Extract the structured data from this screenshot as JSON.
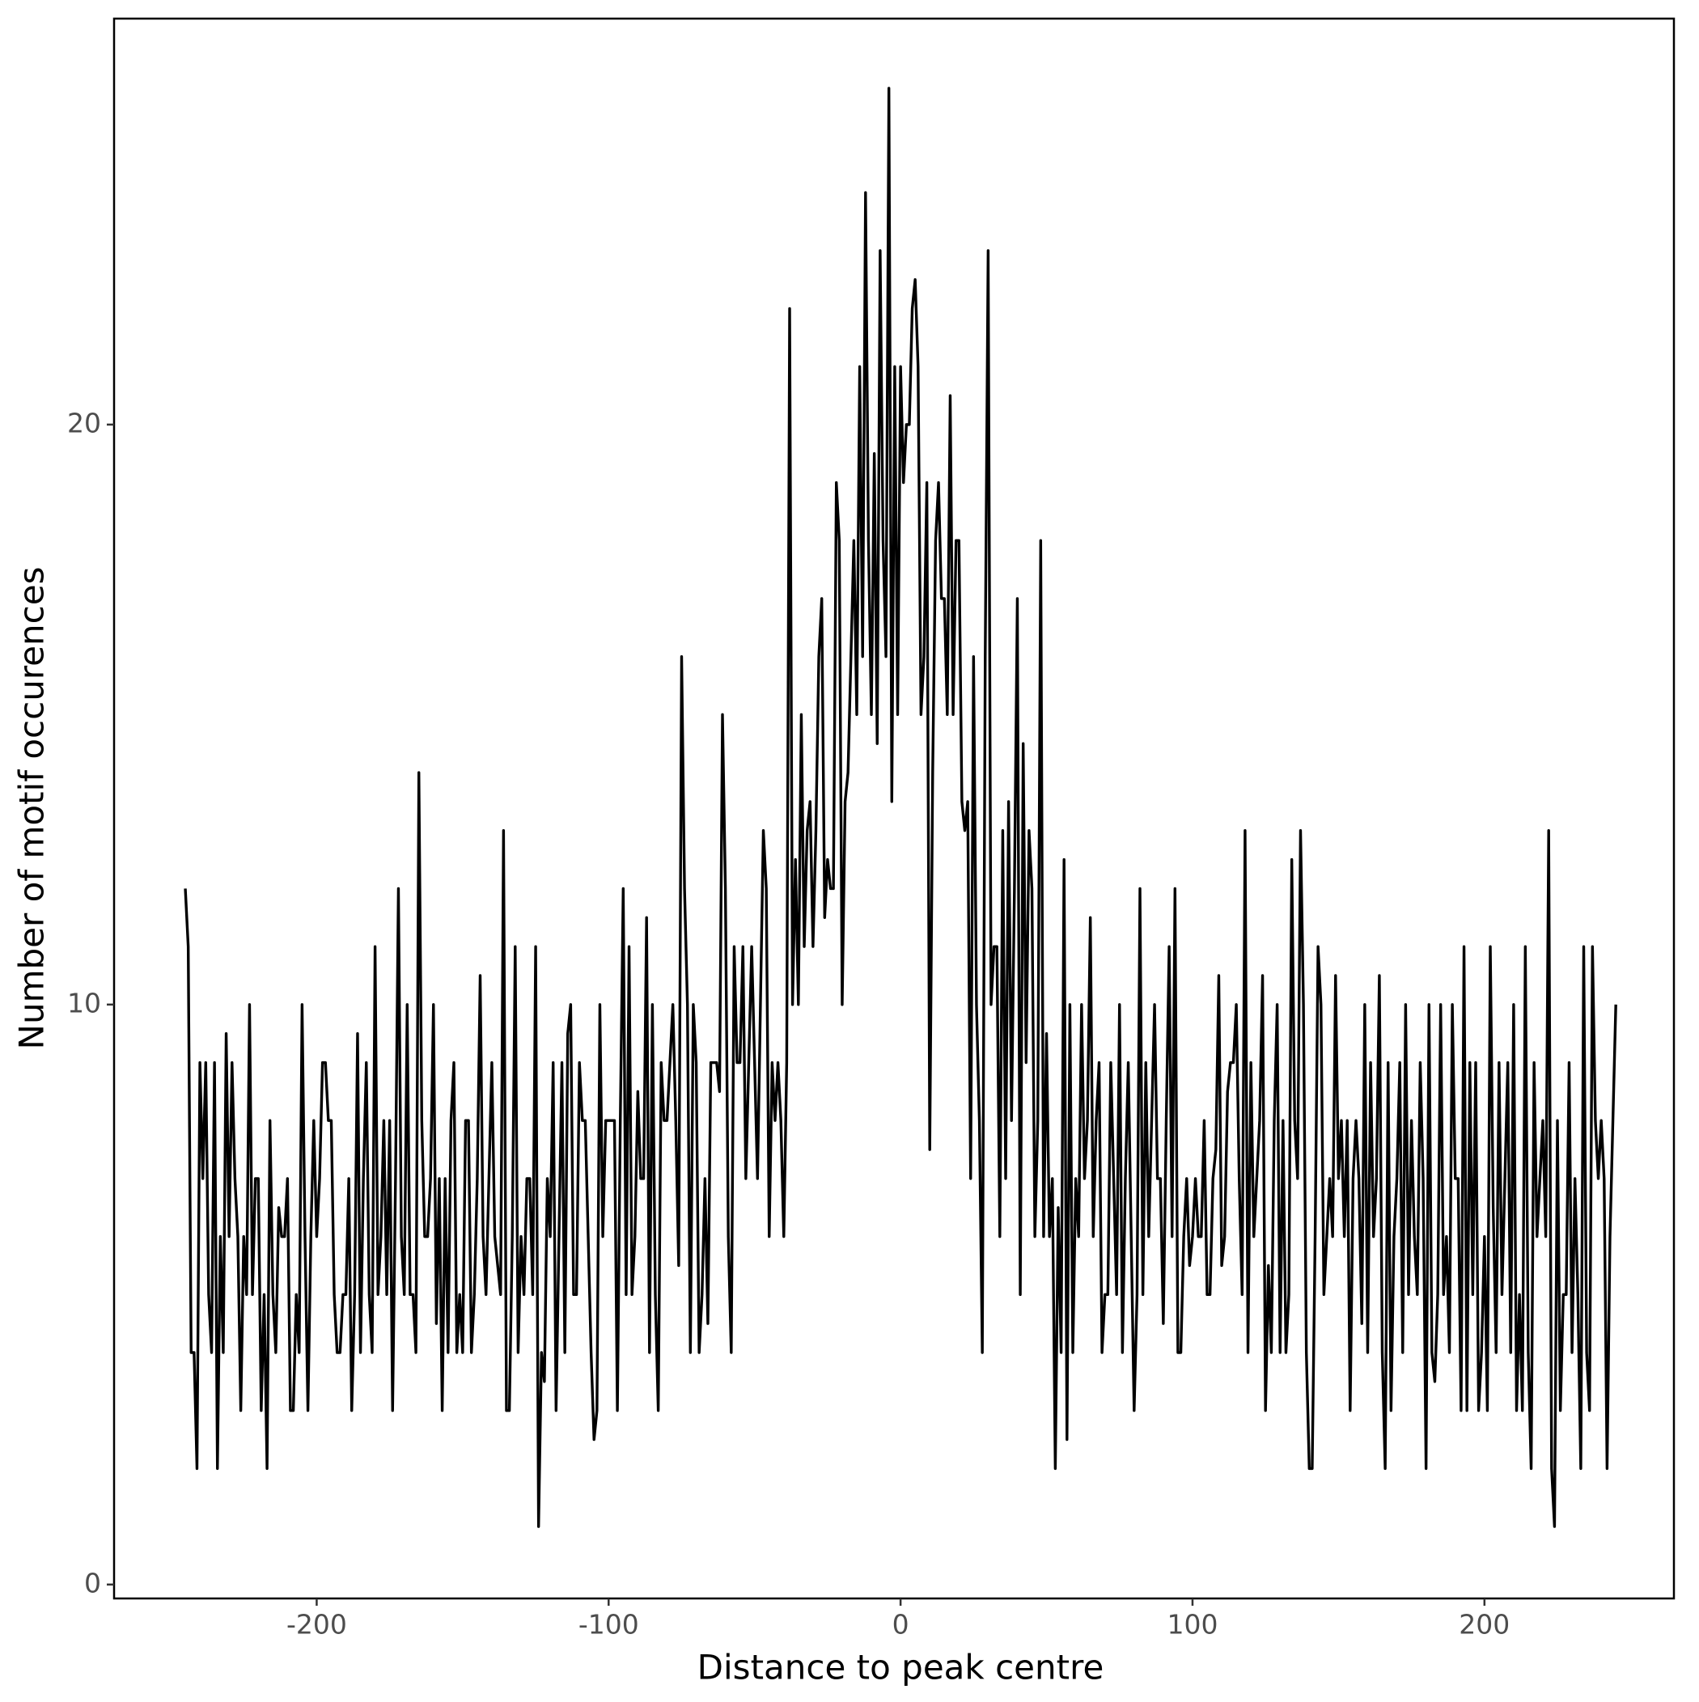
{
  "chart_data": {
    "type": "line",
    "x_label": "Distance to peak centre",
    "y_label": "Number of motif occurences",
    "color": "#000000",
    "xlim": [
      -269.4,
      264.9
    ],
    "ylim": [
      -0.24,
      27.0
    ],
    "xticks": [
      -200,
      -100,
      0,
      100,
      200
    ],
    "yticks": [
      0,
      10,
      20
    ],
    "grid": false,
    "x": [
      -245,
      -244,
      -243,
      -242,
      -241,
      -240,
      -239,
      -238,
      -237,
      -236,
      -235,
      -234,
      -233,
      -232,
      -231,
      -230,
      -229,
      -228,
      -227,
      -226,
      -225,
      -224,
      -223,
      -222,
      -221,
      -220,
      -219,
      -218,
      -217,
      -216,
      -215,
      -214,
      -213,
      -212,
      -211,
      -210,
      -209,
      -208,
      -207,
      -206,
      -205,
      -204,
      -203,
      -202,
      -201,
      -200,
      -199,
      -198,
      -197,
      -196,
      -195,
      -194,
      -193,
      -192,
      -191,
      -190,
      -189,
      -188,
      -187,
      -186,
      -185,
      -184,
      -183,
      -182,
      -181,
      -180,
      -179,
      -178,
      -177,
      -176,
      -175,
      -174,
      -173,
      -172,
      -171,
      -170,
      -169,
      -168,
      -167,
      -166,
      -165,
      -164,
      -163,
      -162,
      -161,
      -160,
      -159,
      -158,
      -157,
      -156,
      -155,
      -154,
      -153,
      -152,
      -151,
      -150,
      -149,
      -148,
      -147,
      -146,
      -145,
      -144,
      -143,
      -142,
      -141,
      -140,
      -139,
      -138,
      -137,
      -136,
      -135,
      -134,
      -133,
      -132,
      -131,
      -130,
      -129,
      -128,
      -127,
      -126,
      -125,
      -124,
      -123,
      -122,
      -121,
      -120,
      -119,
      -118,
      -117,
      -116,
      -115,
      -114,
      -113,
      -112,
      -111,
      -110,
      -109,
      -108,
      -107,
      -106,
      -105,
      -104,
      -103,
      -102,
      -101,
      -100,
      -99,
      -98,
      -97,
      -96,
      -95,
      -94,
      -93,
      -92,
      -91,
      -90,
      -89,
      -88,
      -87,
      -86,
      -85,
      -84,
      -83,
      -82,
      -81,
      -80,
      -79,
      -78,
      -77,
      -76,
      -75,
      -74,
      -73,
      -72,
      -71,
      -70,
      -69,
      -68,
      -67,
      -66,
      -65,
      -64,
      -63,
      -62,
      -61,
      -60,
      -59,
      -58,
      -57,
      -56,
      -55,
      -54,
      -53,
      -52,
      -51,
      -50,
      -49,
      -48,
      -47,
      -46,
      -45,
      -44,
      -43,
      -42,
      -41,
      -40,
      -39,
      -38,
      -37,
      -36,
      -35,
      -34,
      -33,
      -32,
      -31,
      -30,
      -29,
      -28,
      -27,
      -26,
      -25,
      -24,
      -23,
      -22,
      -21,
      -20,
      -19,
      -18,
      -17,
      -16,
      -15,
      -14,
      -13,
      -12,
      -11,
      -10,
      -9,
      -8,
      -7,
      -6,
      -5,
      -4,
      -3,
      -2,
      -1,
      0,
      1,
      2,
      3,
      4,
      5,
      6,
      7,
      8,
      9,
      10,
      11,
      12,
      13,
      14,
      15,
      16,
      17,
      18,
      19,
      20,
      21,
      22,
      23,
      24,
      25,
      26,
      27,
      28,
      29,
      30,
      31,
      32,
      33,
      34,
      35,
      36,
      37,
      38,
      39,
      40,
      41,
      42,
      43,
      44,
      45,
      46,
      47,
      48,
      49,
      50,
      51,
      52,
      53,
      54,
      55,
      56,
      57,
      58,
      59,
      60,
      61,
      62,
      63,
      64,
      65,
      66,
      67,
      68,
      69,
      70,
      71,
      72,
      73,
      74,
      75,
      76,
      77,
      78,
      79,
      80,
      81,
      82,
      83,
      84,
      85,
      86,
      87,
      88,
      89,
      90,
      91,
      92,
      93,
      94,
      95,
      96,
      97,
      98,
      99,
      100,
      101,
      102,
      103,
      104,
      105,
      106,
      107,
      108,
      109,
      110,
      111,
      112,
      113,
      114,
      115,
      116,
      117,
      118,
      119,
      120,
      121,
      122,
      123,
      124,
      125,
      126,
      127,
      128,
      129,
      130,
      131,
      132,
      133,
      134,
      135,
      136,
      137,
      138,
      139,
      140,
      141,
      142,
      143,
      144,
      145,
      146,
      147,
      148,
      149,
      150,
      151,
      152,
      153,
      154,
      155,
      156,
      157,
      158,
      159,
      160,
      161,
      162,
      163,
      164,
      165,
      166,
      167,
      168,
      169,
      170,
      171,
      172,
      173,
      174,
      175,
      176,
      177,
      178,
      179,
      180,
      181,
      182,
      183,
      184,
      185,
      186,
      187,
      188,
      189,
      190,
      191,
      192,
      193,
      194,
      195,
      196,
      197,
      198,
      199,
      200,
      201,
      202,
      203,
      204,
      205,
      206,
      207,
      208,
      209,
      210,
      211,
      212,
      213,
      214,
      215,
      216,
      217,
      218,
      219,
      220,
      221,
      222,
      223,
      224,
      225,
      226,
      227,
      228,
      229,
      230,
      231,
      232,
      233,
      234,
      235,
      236,
      237,
      238,
      239,
      240,
      241,
      242,
      243,
      244,
      245
    ],
    "values": [
      12,
      11,
      4,
      4,
      2,
      9,
      7,
      9,
      5,
      4,
      9,
      2,
      6,
      4,
      9.5,
      6,
      9,
      7,
      6,
      3,
      6,
      5,
      10,
      5,
      7,
      7,
      3,
      5,
      2,
      8,
      5,
      4,
      6.5,
      6,
      6,
      7,
      3,
      3,
      5,
      4,
      10,
      6,
      3,
      6,
      8,
      6,
      7,
      9,
      9,
      8,
      8,
      5,
      4,
      4,
      5,
      5,
      7,
      3,
      5,
      9.5,
      4,
      7,
      9,
      5,
      4,
      11,
      5,
      6,
      8,
      5,
      8,
      3,
      7,
      12,
      6,
      5,
      10,
      5,
      5,
      4,
      14,
      8,
      6,
      6,
      7,
      10,
      4.5,
      7,
      3,
      7,
      4,
      8,
      9,
      4,
      5,
      4,
      8,
      8,
      4,
      5,
      7,
      10.5,
      6,
      5,
      7,
      9,
      6,
      5.5,
      5,
      13,
      3,
      3,
      6,
      11,
      4,
      6,
      5,
      7,
      7,
      5,
      11,
      1,
      4,
      3.5,
      7,
      6,
      9,
      3,
      6,
      9,
      4,
      9.5,
      10,
      5,
      5,
      9,
      8,
      8,
      6,
      4,
      2.5,
      3,
      10,
      6,
      8,
      8,
      8,
      8,
      3,
      8,
      12,
      5,
      11,
      5,
      6,
      8.5,
      7,
      7,
      11.5,
      4,
      10,
      5,
      3,
      9,
      8,
      8,
      9,
      10,
      8,
      5.5,
      16,
      12,
      10,
      4,
      10,
      9,
      4,
      5,
      7,
      4.5,
      9,
      9,
      9,
      8.5,
      15,
      12,
      6,
      4,
      11,
      9,
      9,
      11,
      7,
      9,
      11,
      9,
      7,
      10,
      13,
      12,
      6,
      9,
      8,
      9,
      8,
      6,
      9,
      22,
      10,
      12.5,
      10,
      15,
      11,
      13,
      13.5,
      11,
      13,
      16,
      17,
      11.5,
      12.5,
      12,
      12,
      19,
      18,
      10,
      13.5,
      14,
      16,
      18,
      15,
      21,
      16,
      24,
      18,
      15,
      19.5,
      14.5,
      23,
      18,
      16,
      25.8,
      13.5,
      21,
      15,
      21,
      19,
      20,
      20,
      22,
      22.5,
      21,
      15,
      16,
      19,
      7.5,
      14,
      18,
      19,
      17,
      17,
      15,
      20.5,
      15,
      18,
      18,
      13.5,
      13,
      13.5,
      7,
      16,
      10,
      8,
      4,
      16,
      23,
      10,
      11,
      11,
      6,
      13,
      7,
      13.5,
      8,
      12,
      17,
      5,
      14.5,
      9,
      13,
      12,
      6,
      8,
      18,
      6,
      9.5,
      6,
      7,
      2,
      6.5,
      4,
      12.5,
      2.5,
      10,
      4,
      7,
      6,
      10,
      7,
      8,
      11.5,
      6,
      8,
      9,
      4,
      5,
      5,
      9,
      7,
      5,
      10,
      4,
      7,
      9,
      6,
      3,
      5,
      12,
      5,
      9,
      6,
      8,
      10,
      7,
      7,
      4.5,
      8,
      11,
      6,
      12,
      4,
      4,
      6,
      7,
      5.5,
      6,
      7,
      6,
      6,
      8,
      5,
      5,
      7,
      7.5,
      10.5,
      5.5,
      6,
      8.5,
      9,
      9,
      10,
      7,
      5,
      13,
      4,
      9,
      6,
      7,
      8,
      10.5,
      3,
      5.5,
      4,
      8,
      10,
      4,
      8,
      4,
      5,
      12.5,
      8,
      7,
      13,
      10,
      4,
      2,
      2,
      6,
      11,
      10,
      5,
      6,
      7,
      6,
      10.5,
      7,
      8,
      6,
      8,
      3,
      7,
      8,
      7,
      4.5,
      10,
      4,
      9,
      6,
      7,
      10.5,
      4,
      2,
      9,
      3,
      6,
      7,
      9,
      4,
      10,
      5,
      8,
      6,
      5,
      9,
      7,
      2,
      10,
      4,
      3.5,
      5,
      10,
      5,
      6,
      4,
      10,
      7,
      7,
      3,
      11,
      3,
      9,
      5,
      9,
      3,
      4,
      6,
      3,
      11,
      6.5,
      4,
      9,
      5,
      7,
      9,
      4,
      10,
      3,
      5,
      3,
      11,
      4,
      2,
      9,
      6,
      7,
      8,
      6,
      13,
      2,
      1,
      8,
      3,
      5,
      5,
      9,
      4,
      7,
      5,
      2,
      11,
      4,
      3,
      11,
      8,
      7,
      8,
      7,
      2,
      6,
      8,
      10
    ]
  }
}
